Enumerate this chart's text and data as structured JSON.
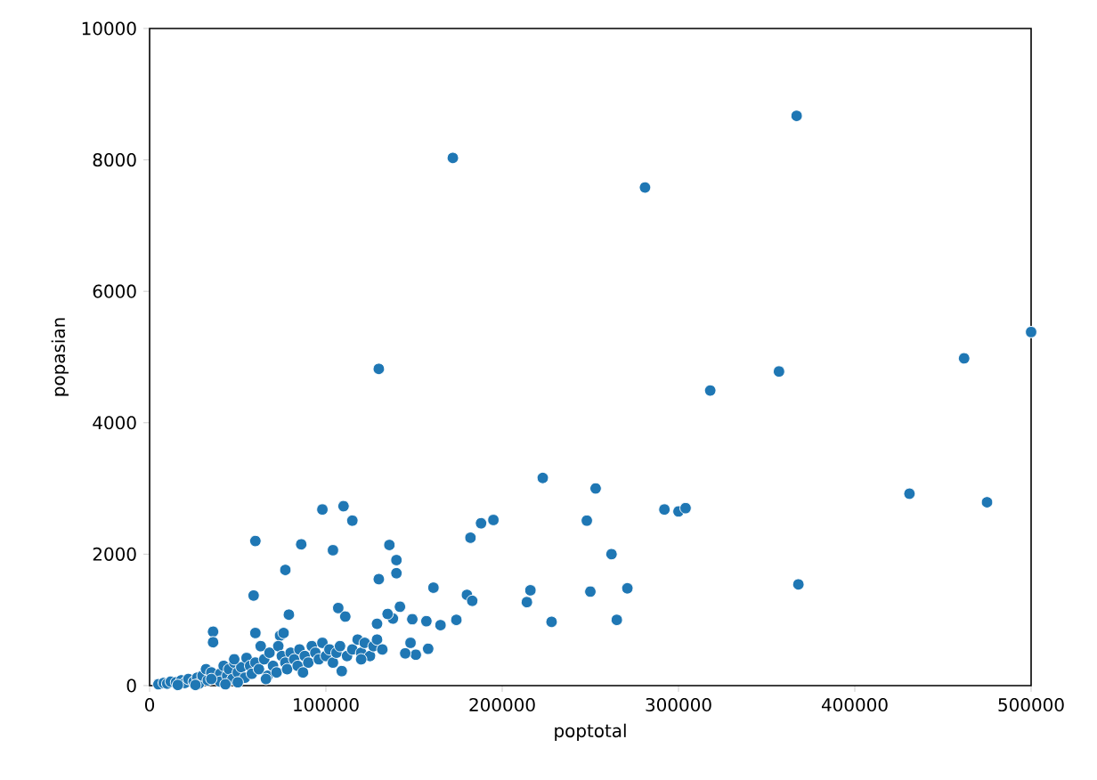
{
  "chart_data": {
    "type": "scatter",
    "xlabel": "poptotal",
    "ylabel": "popasian",
    "color": "#1f77b4",
    "xlim": [
      0,
      500000
    ],
    "ylim": [
      0,
      10000
    ],
    "xticks": [
      0,
      100000,
      200000,
      300000,
      400000,
      500000
    ],
    "yticks": [
      0,
      2000,
      4000,
      6000,
      8000,
      10000
    ],
    "x": [
      172000,
      367000,
      281000,
      130000,
      357000,
      318000,
      462000,
      500000,
      431000,
      475000,
      368000,
      223000,
      253000,
      248000,
      292000,
      300000,
      304000,
      262000,
      271000,
      265000,
      250000,
      228000,
      214000,
      216000,
      195000,
      188000,
      182000,
      180000,
      183000,
      174000,
      165000,
      161000,
      157000,
      158000,
      149000,
      148000,
      151000,
      145000,
      142000,
      140000,
      140000,
      136000,
      130000,
      138000,
      135000,
      129000,
      110000,
      115000,
      98000,
      104000,
      86000,
      60000,
      59000,
      77000,
      79000,
      74000,
      76000,
      36000,
      36000,
      107000,
      111000,
      109000,
      60000,
      5000,
      8000,
      10000,
      12000,
      15000,
      18000,
      20000,
      22000,
      25000,
      27000,
      28000,
      30000,
      32000,
      33000,
      35000,
      40000,
      40000,
      42000,
      44000,
      45000,
      47000,
      48000,
      50000,
      52000,
      54000,
      55000,
      57000,
      58000,
      60000,
      62000,
      63000,
      65000,
      67000,
      68000,
      70000,
      72000,
      73000,
      75000,
      77000,
      78000,
      80000,
      82000,
      84000,
      85000,
      88000,
      90000,
      92000,
      94000,
      96000,
      98000,
      100000,
      102000,
      104000,
      106000,
      108000,
      112000,
      115000,
      118000,
      120000,
      122000,
      125000,
      127000,
      129000,
      132000,
      120000,
      87000,
      66000,
      50000,
      43000,
      16000,
      26000,
      35000,
      48000
    ],
    "values": [
      8030,
      8670,
      7580,
      4820,
      4780,
      4490,
      4980,
      5380,
      2920,
      2790,
      1540,
      3160,
      3000,
      2510,
      2680,
      2650,
      2700,
      2000,
      1480,
      1000,
      1430,
      970,
      1270,
      1450,
      2520,
      2470,
      2250,
      1380,
      1290,
      1000,
      920,
      1490,
      980,
      560,
      1010,
      650,
      470,
      490,
      1200,
      1910,
      1710,
      2140,
      1620,
      1020,
      1090,
      940,
      2730,
      2510,
      2680,
      2060,
      2150,
      2200,
      1370,
      1760,
      1080,
      760,
      800,
      820,
      660,
      1180,
      1050,
      220,
      800,
      20,
      40,
      30,
      60,
      50,
      80,
      40,
      100,
      60,
      120,
      30,
      150,
      250,
      80,
      200,
      180,
      60,
      300,
      150,
      250,
      100,
      350,
      200,
      280,
      120,
      420,
      300,
      180,
      350,
      250,
      600,
      400,
      150,
      500,
      300,
      200,
      600,
      450,
      350,
      250,
      500,
      400,
      300,
      550,
      450,
      350,
      600,
      500,
      400,
      650,
      450,
      550,
      350,
      500,
      600,
      450,
      550,
      700,
      500,
      650,
      450,
      600,
      700,
      550,
      400,
      200,
      100,
      50,
      20,
      10,
      10,
      100,
      400
    ]
  }
}
